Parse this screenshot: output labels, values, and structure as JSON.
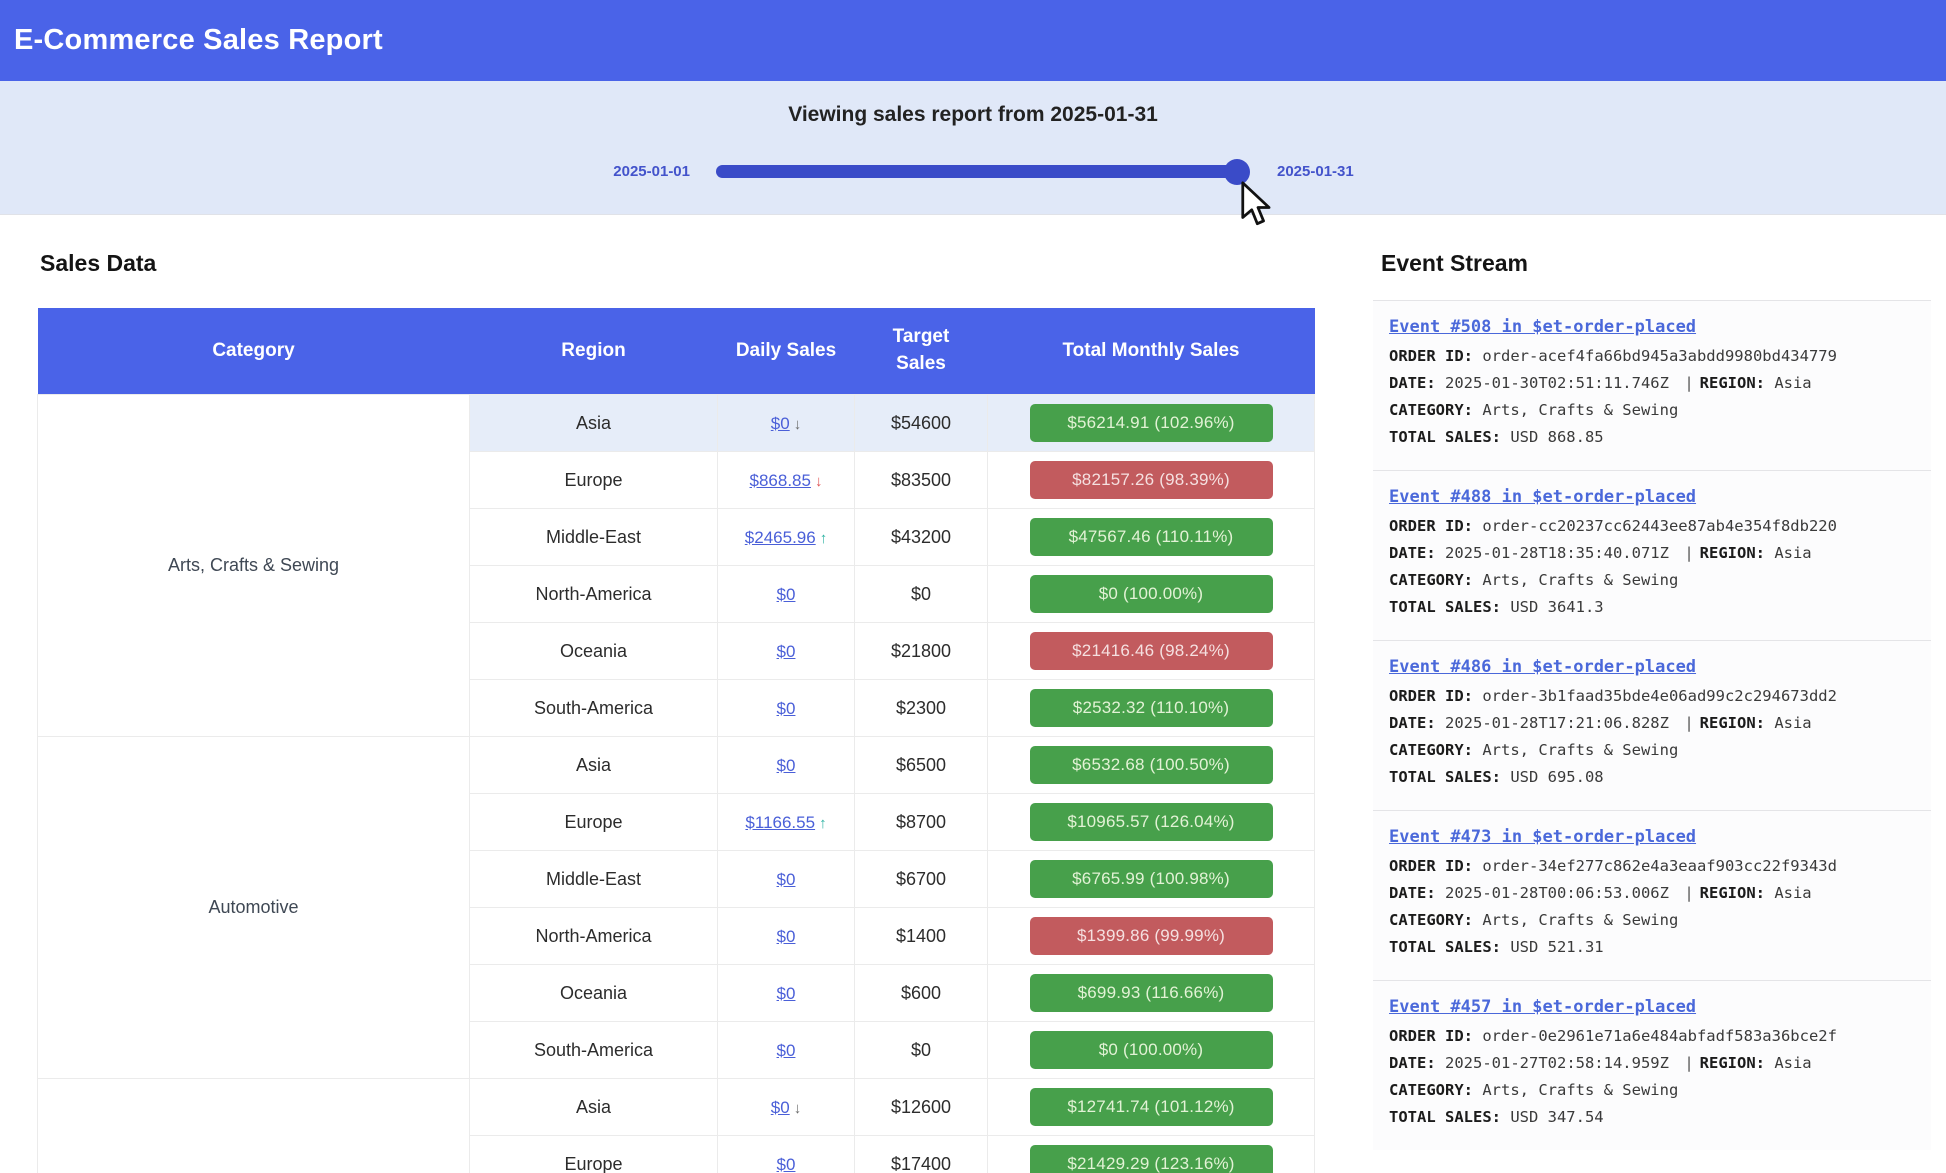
{
  "header": {
    "title": "E-Commerce Sales Report"
  },
  "slider": {
    "title": "Viewing sales report from 2025-01-31",
    "min_label": "2025-01-01",
    "max_label": "2025-01-31",
    "value": "2025-01-31"
  },
  "sales": {
    "heading": "Sales Data",
    "columns": [
      "Category",
      "Region",
      "Daily Sales",
      "Target Sales",
      "Total Monthly Sales"
    ],
    "categories": [
      {
        "label": "Arts, Crafts & Sewing",
        "span": 6
      },
      {
        "label": "Automotive",
        "span": 6
      },
      {
        "label": "",
        "span": 2
      }
    ],
    "rows": [
      {
        "region": "Asia",
        "daily": "$0",
        "trend": "↓",
        "trend_color": "#6b6b6b",
        "target": "$54600",
        "total": "$56214.91 (102.96%)",
        "status": "green",
        "highlight": true
      },
      {
        "region": "Europe",
        "daily": "$868.85",
        "trend": "↓",
        "trend_color": "#e05252",
        "target": "$83500",
        "total": "$82157.26 (98.39%)",
        "status": "red",
        "highlight": false
      },
      {
        "region": "Middle-East",
        "daily": "$2465.96",
        "trend": "↑",
        "trend_color": "#2fb3a3",
        "target": "$43200",
        "total": "$47567.46 (110.11%)",
        "status": "green",
        "highlight": false
      },
      {
        "region": "North-America",
        "daily": "$0",
        "trend": "",
        "trend_color": "",
        "target": "$0",
        "total": "$0 (100.00%)",
        "status": "green",
        "highlight": false
      },
      {
        "region": "Oceania",
        "daily": "$0",
        "trend": "",
        "trend_color": "",
        "target": "$21800",
        "total": "$21416.46 (98.24%)",
        "status": "red",
        "highlight": false
      },
      {
        "region": "South-America",
        "daily": "$0",
        "trend": "",
        "trend_color": "",
        "target": "$2300",
        "total": "$2532.32 (110.10%)",
        "status": "green",
        "highlight": false
      },
      {
        "region": "Asia",
        "daily": "$0",
        "trend": "",
        "trend_color": "",
        "target": "$6500",
        "total": "$6532.68 (100.50%)",
        "status": "green",
        "highlight": false
      },
      {
        "region": "Europe",
        "daily": "$1166.55",
        "trend": "↑",
        "trend_color": "#2fb3a3",
        "target": "$8700",
        "total": "$10965.57 (126.04%)",
        "status": "green",
        "highlight": false
      },
      {
        "region": "Middle-East",
        "daily": "$0",
        "trend": "",
        "trend_color": "",
        "target": "$6700",
        "total": "$6765.99 (100.98%)",
        "status": "green",
        "highlight": false
      },
      {
        "region": "North-America",
        "daily": "$0",
        "trend": "",
        "trend_color": "",
        "target": "$1400",
        "total": "$1399.86 (99.99%)",
        "status": "red",
        "highlight": false
      },
      {
        "region": "Oceania",
        "daily": "$0",
        "trend": "",
        "trend_color": "",
        "target": "$600",
        "total": "$699.93 (116.66%)",
        "status": "green",
        "highlight": false
      },
      {
        "region": "South-America",
        "daily": "$0",
        "trend": "",
        "trend_color": "",
        "target": "$0",
        "total": "$0 (100.00%)",
        "status": "green",
        "highlight": false
      },
      {
        "region": "Asia",
        "daily": "$0",
        "trend": "↓",
        "trend_color": "#6b6b6b",
        "target": "$12600",
        "total": "$12741.74 (101.12%)",
        "status": "green",
        "highlight": false
      },
      {
        "region": "Europe",
        "daily": "$0",
        "trend": "",
        "trend_color": "",
        "target": "$17400",
        "total": "$21429.29 (123.16%)",
        "status": "green",
        "highlight": false
      }
    ]
  },
  "events": {
    "heading": "Event Stream",
    "labels": {
      "order_id": "ORDER ID:",
      "date": "DATE:",
      "region": "REGION:",
      "category": "CATEGORY:",
      "total_sales": "TOTAL SALES:",
      "separator": "|"
    },
    "items": [
      {
        "title": "Event #508 in $et-order-placed",
        "order_id": "order-acef4fa66bd945a3abdd9980bd434779",
        "date": "2025-01-30T02:51:11.746Z",
        "region": "Asia",
        "category": "Arts, Crafts & Sewing",
        "total_sales": "USD 868.85"
      },
      {
        "title": "Event #488 in $et-order-placed",
        "order_id": "order-cc20237cc62443ee87ab4e354f8db220",
        "date": "2025-01-28T18:35:40.071Z",
        "region": "Asia",
        "category": "Arts, Crafts & Sewing",
        "total_sales": "USD 3641.3"
      },
      {
        "title": "Event #486 in $et-order-placed",
        "order_id": "order-3b1faad35bde4e06ad99c2c294673dd2",
        "date": "2025-01-28T17:21:06.828Z",
        "region": "Asia",
        "category": "Arts, Crafts & Sewing",
        "total_sales": "USD 695.08"
      },
      {
        "title": "Event #473 in $et-order-placed",
        "order_id": "order-34ef277c862e4a3eaaf903cc22f9343d",
        "date": "2025-01-28T00:06:53.006Z",
        "region": "Asia",
        "category": "Arts, Crafts & Sewing",
        "total_sales": "USD 521.31"
      },
      {
        "title": "Event #457 in $et-order-placed",
        "order_id": "order-0e2961e71a6e484abfadf583a36bce2f",
        "date": "2025-01-27T02:58:14.959Z",
        "region": "Asia",
        "category": "Arts, Crafts & Sewing",
        "total_sales": "USD 347.54"
      }
    ]
  },
  "colors": {
    "header_bg": "#4a63e8",
    "table_header_bg": "#4a63e8",
    "slider_bg": "#e0e8f8",
    "slider_track": "#3a4bc8",
    "date_label": "#4353cb",
    "link": "#4a5fd8",
    "event_link": "#4a68da",
    "badge_green": "#47a04b",
    "badge_green_text": "#e2f2d5",
    "badge_red": "#c25b5e",
    "badge_red_text": "#f5e0e0",
    "highlight_row": "#e6edf9"
  }
}
